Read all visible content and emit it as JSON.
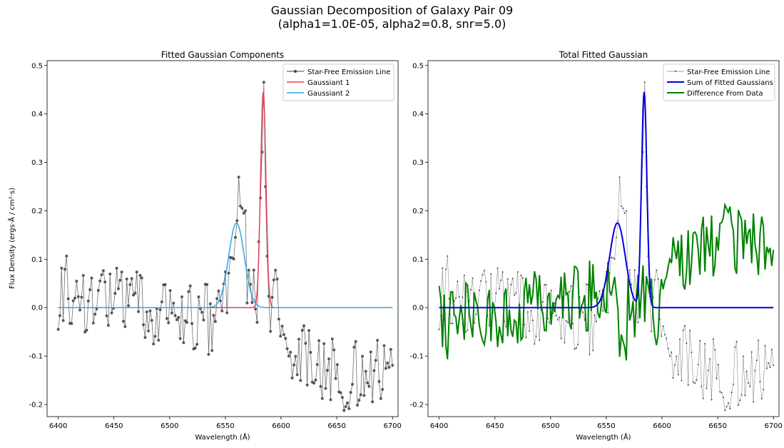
{
  "figure": {
    "title_line1": "Gaussian Decomposition of Galaxy Pair 09",
    "title_line2": "(alpha1=1.0E-05, alpha2=0.8, snr=5.0)"
  },
  "colors": {
    "data": "#404040",
    "gauss1": "#e0405a",
    "gauss2": "#2ea8e6",
    "sum": "#0000e0",
    "diff": "#008000"
  },
  "chart_data": [
    {
      "type": "line",
      "title": "Fitted Gaussian Components",
      "xlabel": "Wavelength (Å)",
      "ylabel": "Flux Density (ergs·Å / cm²·s)",
      "xlim": [
        6390,
        6705
      ],
      "ylim": [
        -0.225,
        0.51
      ],
      "xticks": [
        6400,
        6450,
        6500,
        6550,
        6600,
        6650,
        6700
      ],
      "yticks": [
        -0.2,
        -0.1,
        0.0,
        0.1,
        0.2,
        0.3,
        0.4,
        0.5
      ],
      "legend_position": "top-right",
      "series": [
        {
          "name": "Star-Free Emission Line",
          "role": "data",
          "color": "#404040",
          "marker": "dot",
          "values": "noisy spectrum, 6400-6700 Å, ~1.5 Å sampling; baseline ~0.03 at 6400 drifting to ~-0.03 at 6540, broad bump to 0.275 near 6562, peak 0.465 at 6584, dropping to about -0.13 beyond 6610"
        },
        {
          "name": "Gaussiant 1",
          "role": "gauss1",
          "color": "#e0405a",
          "amplitude": 0.445,
          "center": 6584,
          "sigma": 2.4
        },
        {
          "name": "Gaussiant 2",
          "role": "gauss2",
          "color": "#2ea8e6",
          "amplitude": 0.175,
          "center": 6560,
          "sigma": 7
        }
      ]
    },
    {
      "type": "line",
      "title": "Total Fitted Gaussian",
      "xlabel": "Wavelength (Å)",
      "xlim": [
        6390,
        6705
      ],
      "ylim": [
        -0.225,
        0.51
      ],
      "xticks": [
        6400,
        6450,
        6500,
        6550,
        6600,
        6650,
        6700
      ],
      "yticks": [
        -0.2,
        -0.1,
        0.0,
        0.1,
        0.2,
        0.3,
        0.4,
        0.5
      ],
      "legend_position": "top-right",
      "series": [
        {
          "name": "Star-Free Emission Line",
          "role": "data",
          "color": "#404040",
          "marker": "small-dot"
        },
        {
          "name": "Sum of Fitted Gaussians",
          "role": "sum",
          "color": "#0000e0"
        },
        {
          "name": "Difference From Data",
          "role": "diff",
          "color": "#008000"
        }
      ]
    }
  ]
}
